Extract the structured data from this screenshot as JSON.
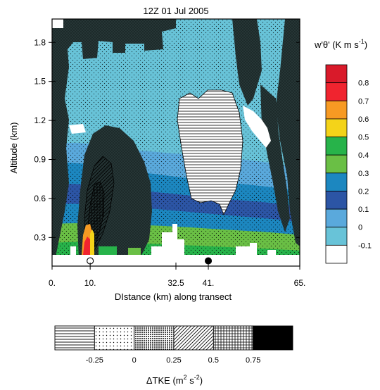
{
  "chart_data": {
    "type": "heatmap",
    "title": "12Z 01 Jul 2005",
    "xlabel": "DIstance (km) along transect",
    "ylabel": "Altitude (km)",
    "x_ticks": [
      "0.",
      "10.",
      "32.5",
      "41.",
      "65."
    ],
    "x_tick_values": [
      0,
      10,
      32.5,
      41,
      65
    ],
    "y_ticks": [
      "0.3",
      "0.6",
      "0.9",
      "1.2",
      "1.5",
      "1.8"
    ],
    "y_tick_values": [
      0.3,
      0.6,
      0.9,
      1.2,
      1.5,
      1.8
    ],
    "xlim": [
      0,
      65
    ],
    "ylim": [
      0.08,
      1.98
    ],
    "grid": false,
    "colorbar_wtheta": {
      "label": "w'θ' (K m s",
      "label_sup": "-1",
      "label_close": ")",
      "levels": [
        "0.8",
        "0.7",
        "0.6",
        "0.5",
        "0.4",
        "0.3",
        "0.2",
        "0.1",
        "0",
        "-0.1"
      ],
      "colors": [
        "#d91a2a",
        "#f0242f",
        "#f79a23",
        "#f4d319",
        "#27b34a",
        "#6abf45",
        "#1c87c0",
        "#2c55a5",
        "#5aa9dc",
        "#68c3d8",
        "#ffffff"
      ]
    },
    "colorbar_dtke": {
      "label_prefix": "ΔTKE (m",
      "label_sup": "2",
      "label_mid": " s",
      "label_sup2": "-2",
      "label_close": ")",
      "levels": [
        "-0.25",
        "0",
        "0.25",
        "0.5",
        "0.75"
      ],
      "patterns": [
        "hlines",
        "dots-sparse",
        "dots-dense",
        "diagonal",
        "crosshatch",
        "solid-black"
      ]
    },
    "markers": [
      {
        "label": "open-circle",
        "x": 10,
        "y": 0.12
      },
      {
        "label": "filled-circle",
        "x": 41,
        "y": 0.12
      }
    ]
  }
}
